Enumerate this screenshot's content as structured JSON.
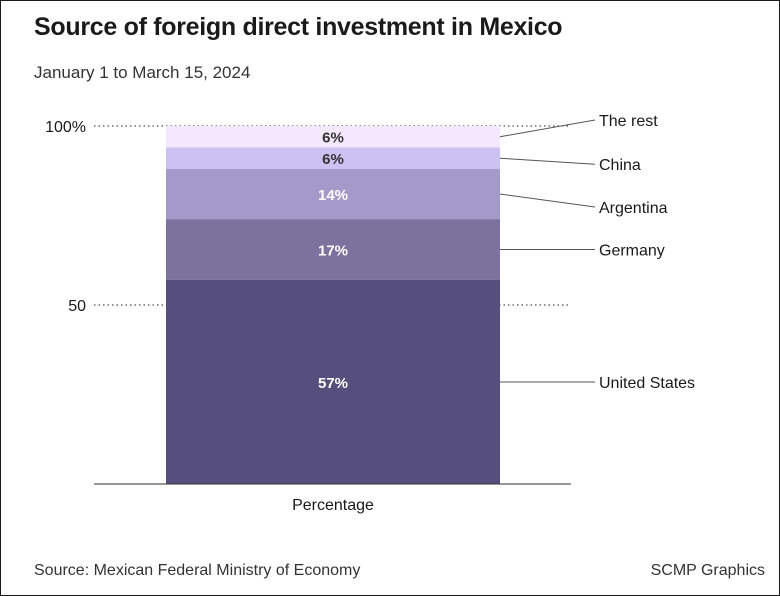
{
  "title": "Source of foreign direct investment in Mexico",
  "subtitle": "January 1 to March 15, 2024",
  "source": "Source: Mexican Federal Ministry of Economy",
  "credit": "SCMP Graphics",
  "chart_data": {
    "type": "bar",
    "stacked": true,
    "categories": [
      "Percentage"
    ],
    "xlabel": "Percentage",
    "ylabel": "",
    "ylim": [
      0,
      100
    ],
    "y_ticks": [
      {
        "value": 50,
        "label": "50"
      },
      {
        "value": 100,
        "label": "100%"
      }
    ],
    "grid": "dotted at tick values",
    "legend": "right, with leader lines",
    "series": [
      {
        "name": "United States",
        "values": [
          57
        ],
        "label": "57%",
        "color": "#564f7d",
        "label_color": "#ffffff"
      },
      {
        "name": "Germany",
        "values": [
          17
        ],
        "label": "17%",
        "color": "#7d729e",
        "label_color": "#ffffff"
      },
      {
        "name": "Argentina",
        "values": [
          14
        ],
        "label": "14%",
        "color": "#a49ac9",
        "label_color": "#ffffff"
      },
      {
        "name": "China",
        "values": [
          6
        ],
        "label": "6%",
        "color": "#cbc2f2",
        "label_color": "#333333"
      },
      {
        "name": "The rest",
        "values": [
          6
        ],
        "label": "6%",
        "color": "#f3e8fd",
        "label_color": "#333333"
      }
    ]
  }
}
